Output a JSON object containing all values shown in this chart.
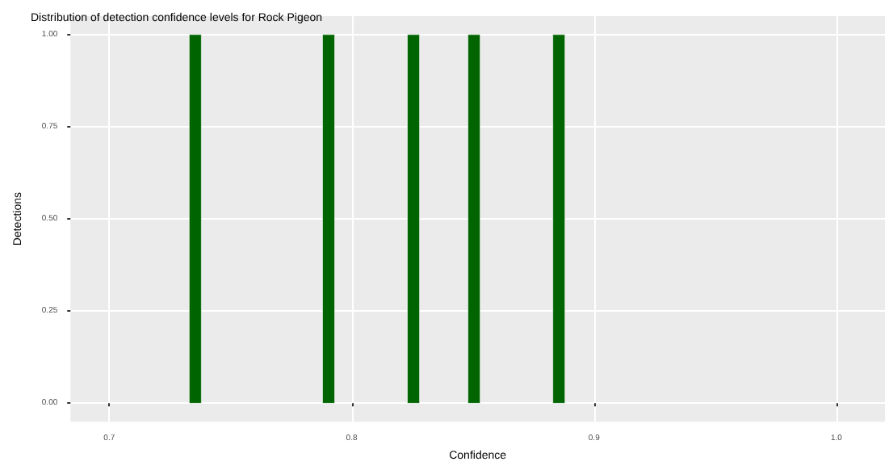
{
  "chart_data": {
    "type": "histogram",
    "title": "Distribution of detection confidence levels for Rock Pigeon",
    "xlabel": "Confidence",
    "ylabel": "Detections",
    "bins": [
      0.733,
      0.738,
      0.788,
      0.793,
      0.823,
      0.828,
      0.848,
      0.853,
      0.883,
      0.888
    ],
    "values": [
      1,
      0,
      1,
      0,
      1,
      0,
      1,
      0,
      1
    ],
    "color": "#006400",
    "xlim": [
      0.684,
      1.02
    ],
    "xticks": [
      {
        "value": 0.7,
        "label": "0.7"
      },
      {
        "value": 0.8,
        "label": "0.8"
      },
      {
        "value": 0.9,
        "label": "0.9"
      },
      {
        "value": 1.0,
        "label": "1.0"
      }
    ],
    "ylim": [
      -0.05,
      1.05
    ],
    "yticks": [
      {
        "value": 0,
        "label": "0.00"
      },
      {
        "value": 0.25,
        "label": "0.25"
      },
      {
        "value": 0.5,
        "label": "0.50"
      },
      {
        "value": 0.75,
        "label": "0.75"
      },
      {
        "value": 1,
        "label": "1.00"
      }
    ],
    "grid": true
  }
}
